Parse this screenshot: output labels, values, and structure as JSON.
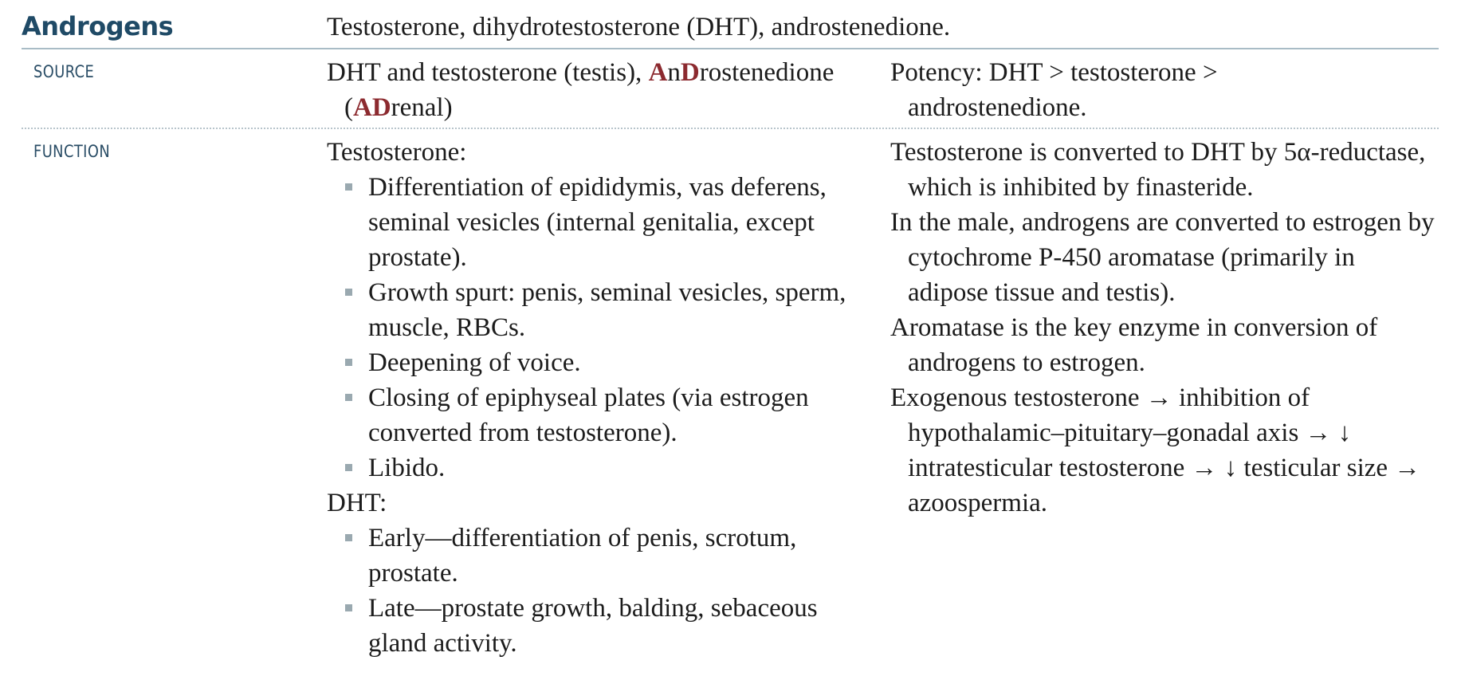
{
  "title": "Androgens",
  "title_description": "Testosterone, dihydrotestosterone (DHT), androstenedione.",
  "source": {
    "label": "SOURCE",
    "text_a": "DHT and testosterone (testis), ",
    "hl1": "A",
    "t1": "n",
    "hl2": "D",
    "t2": "rostenedione",
    "t3": "(",
    "hl3": "AD",
    "t4": "renal)",
    "note": "Potency: DHT > testosterone > androstenedione."
  },
  "function": {
    "label": "FUNCTION",
    "testosterone_heading": "Testosterone:",
    "testosterone_items": [
      "Differentiation of epididymis, vas deferens, seminal vesicles (internal genitalia, except prostate).",
      "Growth spurt: penis, seminal vesicles, sperm, muscle, RBCs.",
      "Deepening of voice.",
      "Closing of epiphyseal plates (via estrogen converted from testosterone).",
      "Libido."
    ],
    "dht_heading": "DHT:",
    "dht_items": [
      "Early—differentiation of penis, scrotum, prostate.",
      "Late—prostate growth, balding, sebaceous gland activity."
    ],
    "notes": [
      "Testosterone is converted to DHT by 5α-reductase, which is inhibited by finasteride.",
      "In the male, androgens are converted to estrogen by cytochrome P-450 aromatase (primarily in adipose tissue and testis).",
      "Aromatase is the key enzyme in conversion of androgens to estrogen.",
      "Exogenous testosterone → inhibition of hypothalamic–pituitary–gonadal axis → ↓ intratesticular testosterone → ↓ testicular size → azoospermia."
    ]
  }
}
